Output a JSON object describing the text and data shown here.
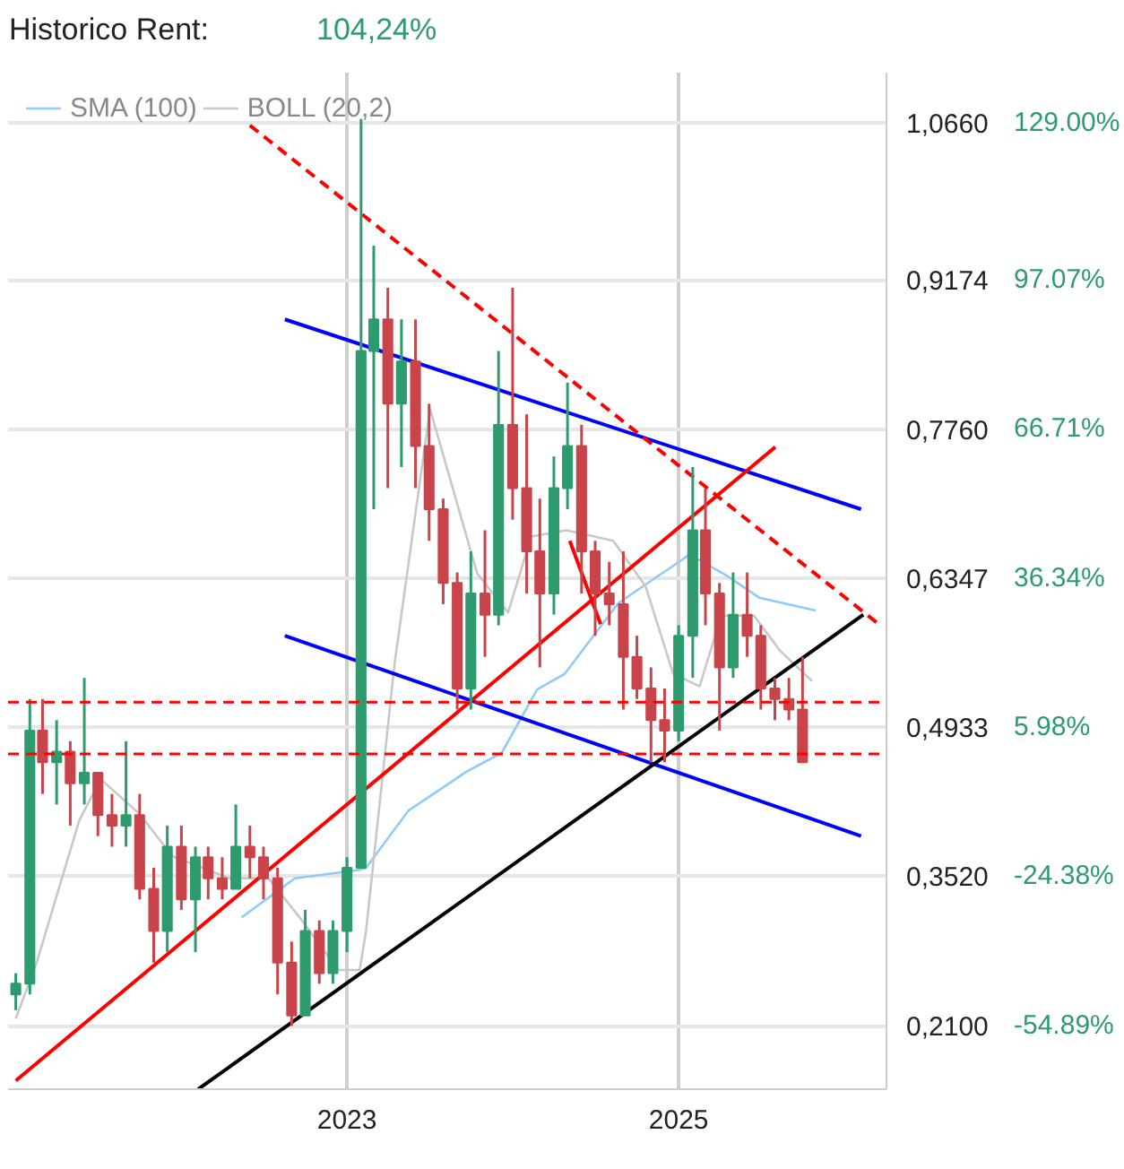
{
  "chart_data": {
    "type": "candlestick",
    "title": "Historico  Rent:",
    "annotations": [
      "104,24%"
    ],
    "x": [
      "2021-01",
      "2021-02",
      "2021-03",
      "2021-04",
      "2021-05",
      "2021-06",
      "2021-07",
      "2021-08",
      "2021-09",
      "2021-10",
      "2021-11",
      "2021-12",
      "2022-01",
      "2022-02",
      "2022-03",
      "2022-04",
      "2022-05",
      "2022-06",
      "2022-07",
      "2022-08",
      "2022-09",
      "2022-10",
      "2022-11",
      "2022-12",
      "2023-01",
      "2023-02",
      "2023-03",
      "2023-04",
      "2023-05",
      "2023-06",
      "2023-07",
      "2023-08",
      "2023-09",
      "2023-10",
      "2023-11",
      "2023-12",
      "2024-01",
      "2024-02",
      "2024-03",
      "2024-04",
      "2024-05",
      "2024-06",
      "2024-07",
      "2024-08",
      "2024-09",
      "2024-10",
      "2024-11",
      "2024-12",
      "2025-01",
      "2025-02",
      "2025-03",
      "2025-04",
      "2025-05",
      "2025-06",
      "2025-07",
      "2025-08",
      "2025-09",
      "2025-10"
    ],
    "ohlc": [
      [
        0.24,
        0.26,
        0.225,
        0.25
      ],
      [
        0.25,
        0.52,
        0.24,
        0.49
      ],
      [
        0.49,
        0.52,
        0.43,
        0.46
      ],
      [
        0.46,
        0.5,
        0.42,
        0.47
      ],
      [
        0.47,
        0.48,
        0.4,
        0.44
      ],
      [
        0.44,
        0.54,
        0.42,
        0.45
      ],
      [
        0.45,
        0.45,
        0.39,
        0.41
      ],
      [
        0.41,
        0.43,
        0.38,
        0.4
      ],
      [
        0.4,
        0.48,
        0.38,
        0.41
      ],
      [
        0.41,
        0.43,
        0.33,
        0.34
      ],
      [
        0.34,
        0.36,
        0.27,
        0.3
      ],
      [
        0.3,
        0.4,
        0.28,
        0.38
      ],
      [
        0.38,
        0.4,
        0.32,
        0.33
      ],
      [
        0.33,
        0.38,
        0.28,
        0.37
      ],
      [
        0.37,
        0.38,
        0.33,
        0.35
      ],
      [
        0.35,
        0.37,
        0.33,
        0.34
      ],
      [
        0.34,
        0.42,
        0.34,
        0.38
      ],
      [
        0.38,
        0.4,
        0.35,
        0.37
      ],
      [
        0.37,
        0.38,
        0.33,
        0.35
      ],
      [
        0.35,
        0.36,
        0.24,
        0.27
      ],
      [
        0.27,
        0.29,
        0.21,
        0.22
      ],
      [
        0.22,
        0.32,
        0.22,
        0.3
      ],
      [
        0.3,
        0.31,
        0.25,
        0.26
      ],
      [
        0.26,
        0.31,
        0.25,
        0.3
      ],
      [
        0.3,
        0.37,
        0.28,
        0.36
      ],
      [
        0.36,
        1.07,
        0.36,
        0.85
      ],
      [
        0.85,
        0.95,
        0.7,
        0.88
      ],
      [
        0.88,
        0.91,
        0.72,
        0.8
      ],
      [
        0.8,
        0.88,
        0.74,
        0.84
      ],
      [
        0.84,
        0.88,
        0.72,
        0.76
      ],
      [
        0.76,
        0.8,
        0.67,
        0.7
      ],
      [
        0.7,
        0.71,
        0.61,
        0.63
      ],
      [
        0.63,
        0.64,
        0.51,
        0.53
      ],
      [
        0.53,
        0.66,
        0.51,
        0.62
      ],
      [
        0.62,
        0.68,
        0.56,
        0.6
      ],
      [
        0.6,
        0.85,
        0.59,
        0.78
      ],
      [
        0.78,
        0.91,
        0.69,
        0.72
      ],
      [
        0.72,
        0.79,
        0.62,
        0.66
      ],
      [
        0.66,
        0.71,
        0.55,
        0.62
      ],
      [
        0.62,
        0.75,
        0.6,
        0.72
      ],
      [
        0.72,
        0.82,
        0.7,
        0.76
      ],
      [
        0.76,
        0.78,
        0.62,
        0.66
      ],
      [
        0.66,
        0.67,
        0.58,
        0.62
      ],
      [
        0.62,
        0.65,
        0.59,
        0.61
      ],
      [
        0.61,
        0.66,
        0.51,
        0.56
      ],
      [
        0.56,
        0.58,
        0.52,
        0.53
      ],
      [
        0.53,
        0.55,
        0.46,
        0.5
      ],
      [
        0.5,
        0.53,
        0.46,
        0.49
      ],
      [
        0.49,
        0.59,
        0.48,
        0.58
      ],
      [
        0.58,
        0.74,
        0.54,
        0.68
      ],
      [
        0.68,
        0.72,
        0.59,
        0.62
      ],
      [
        0.62,
        0.63,
        0.49,
        0.55
      ],
      [
        0.55,
        0.64,
        0.54,
        0.6
      ],
      [
        0.6,
        0.64,
        0.56,
        0.58
      ],
      [
        0.58,
        0.59,
        0.51,
        0.53
      ],
      [
        0.53,
        0.54,
        0.5,
        0.52
      ],
      [
        0.52,
        0.54,
        0.5,
        0.51
      ],
      [
        0.51,
        0.56,
        0.46,
        0.46
      ]
    ],
    "colors": [
      "#2e9b6e",
      "#2e9b6e",
      "#c9444a",
      "#2e9b6e",
      "#c9444a",
      "#2e9b6e",
      "#c9444a",
      "#c9444a",
      "#2e9b6e",
      "#c9444a",
      "#c9444a",
      "#2e9b6e",
      "#c9444a",
      "#2e9b6e",
      "#c9444a",
      "#c9444a",
      "#2e9b6e",
      "#c9444a",
      "#c9444a",
      "#c9444a",
      "#c9444a",
      "#2e9b6e",
      "#c9444a",
      "#2e9b6e",
      "#2e9b6e",
      "#2e9b6e",
      "#2e9b6e",
      "#c9444a",
      "#2e9b6e",
      "#c9444a",
      "#c9444a",
      "#c9444a",
      "#c9444a",
      "#2e9b6e",
      "#c9444a",
      "#2e9b6e",
      "#c9444a",
      "#c9444a",
      "#c9444a",
      "#2e9b6e",
      "#2e9b6e",
      "#c9444a",
      "#c9444a",
      "#c9444a",
      "#c9444a",
      "#c9444a",
      "#c9444a",
      "#c9444a",
      "#2e9b6e",
      "#2e9b6e",
      "#c9444a",
      "#c9444a",
      "#2e9b6e",
      "#c9444a",
      "#c9444a",
      "#c9444a",
      "#c9444a",
      "#c9444a"
    ],
    "series": [
      {
        "name": "SMA (100)",
        "type": "line",
        "color": "#90caf9",
        "x": [
          "2022-05-14",
          "2022-09-08",
          "2023-01-29",
          "2023-02-12",
          "2023-05-16",
          "2023-09-21",
          "2023-12-08",
          "2024-02-24",
          "2024-04-25",
          "2024-08-21",
          "2025-01-25",
          "2025-04-17",
          "2025-06-28",
          "2025-10-30"
        ],
        "values": [
          0.313,
          0.35,
          0.358,
          0.36,
          0.414,
          0.451,
          0.469,
          0.529,
          0.544,
          0.611,
          0.657,
          0.637,
          0.616,
          0.604
        ]
      },
      {
        "name": "BOLL (20,2)",
        "type": "line",
        "color": "#c8c8c8",
        "x": [
          "2021-01-01",
          "2021-02-16",
          "2021-05-21",
          "2021-07-07",
          "2021-10-01",
          "2021-12-12",
          "2022-04-18",
          "2022-07-12",
          "2022-09-22",
          "2022-12-13",
          "2023-01-29",
          "2023-02-12",
          "2023-04-16",
          "2023-07-03",
          "2023-10-15",
          "2023-12-22",
          "2024-02-11",
          "2024-04-29",
          "2024-08-10",
          "2024-10-20",
          "2024-12-20",
          "2025-02-16",
          "2025-04-05",
          "2025-06-16",
          "2025-08-12",
          "2025-10-22"
        ],
        "values": [
          0.217,
          0.27,
          0.405,
          0.444,
          0.411,
          0.371,
          0.35,
          0.35,
          0.311,
          0.263,
          0.263,
          0.3,
          0.554,
          0.795,
          0.639,
          0.602,
          0.674,
          0.68,
          0.67,
          0.627,
          0.544,
          0.532,
          0.599,
          0.599,
          0.566,
          0.537
        ]
      },
      {
        "type": "line",
        "color": "#0000ff",
        "x": [
          "2022-08-17",
          "2026-02-07"
        ],
        "values": [
          0.88,
          0.7
        ]
      },
      {
        "type": "line",
        "color": "#0000ff",
        "x": [
          "2022-08-17",
          "2026-02-07"
        ],
        "values": [
          0.58,
          0.39
        ]
      },
      {
        "type": "line",
        "color": "#ff0000",
        "x": [
          "2021-01-01",
          "2025-08-02"
        ],
        "values": [
          0.158,
          0.759
        ]
      },
      {
        "type": "line",
        "color": "#ff0000",
        "x": [
          "2024-05-06",
          "2024-07-13"
        ],
        "values": [
          0.67,
          0.591
        ]
      },
      {
        "type": "line",
        "color": "#000000",
        "x": [
          "2022-02-07",
          "2026-02-12"
        ],
        "values": [
          0.15,
          0.6
        ]
      },
      {
        "type": "line",
        "color": "#ff0000",
        "line_style": "dashed",
        "x": [
          "2022-06-01",
          "2026-03-21"
        ],
        "values": [
          1.064,
          0.59
        ]
      }
    ],
    "xlim": [
      "2020-12-15",
      "2026-04-04"
    ],
    "xticks": [
      {
        "value": "2023-01-01",
        "label": "2023"
      },
      {
        "value": "2025-01-01",
        "label": "2025"
      }
    ],
    "ylim": [
      0.15,
      1.114
    ],
    "yticks": [
      {
        "value": 0.21,
        "label": "0,2100"
      },
      {
        "value": 0.352,
        "label": "0,3520"
      },
      {
        "value": 0.4933,
        "label": "0,4933"
      },
      {
        "value": 0.6347,
        "label": "0,6347"
      },
      {
        "value": 0.776,
        "label": "0,7760"
      },
      {
        "value": 0.9174,
        "label": "0,9174"
      },
      {
        "value": 1.066,
        "label": "1,0660"
      }
    ],
    "y2lim": [
      -67.8,
      139.3
    ],
    "y2ticks": [
      {
        "value": -54.89,
        "label": "-54.89%"
      },
      {
        "value": -24.38,
        "label": "-24.38%"
      },
      {
        "value": 5.98,
        "label": "5.98%"
      },
      {
        "value": 36.34,
        "label": "36.34%"
      },
      {
        "value": 66.71,
        "label": "66.71%"
      },
      {
        "value": 97.07,
        "label": "97.07%"
      },
      {
        "value": 129.0,
        "label": "129.00%"
      }
    ],
    "ref_lines": [
      {
        "axis": "y",
        "value": 0.517,
        "color": "#ff0000",
        "line_style": "dashed"
      },
      {
        "axis": "y",
        "value": 0.468,
        "color": "#ff0000",
        "line_style": "dashed"
      }
    ],
    "grid": true,
    "legend": "top left"
  }
}
